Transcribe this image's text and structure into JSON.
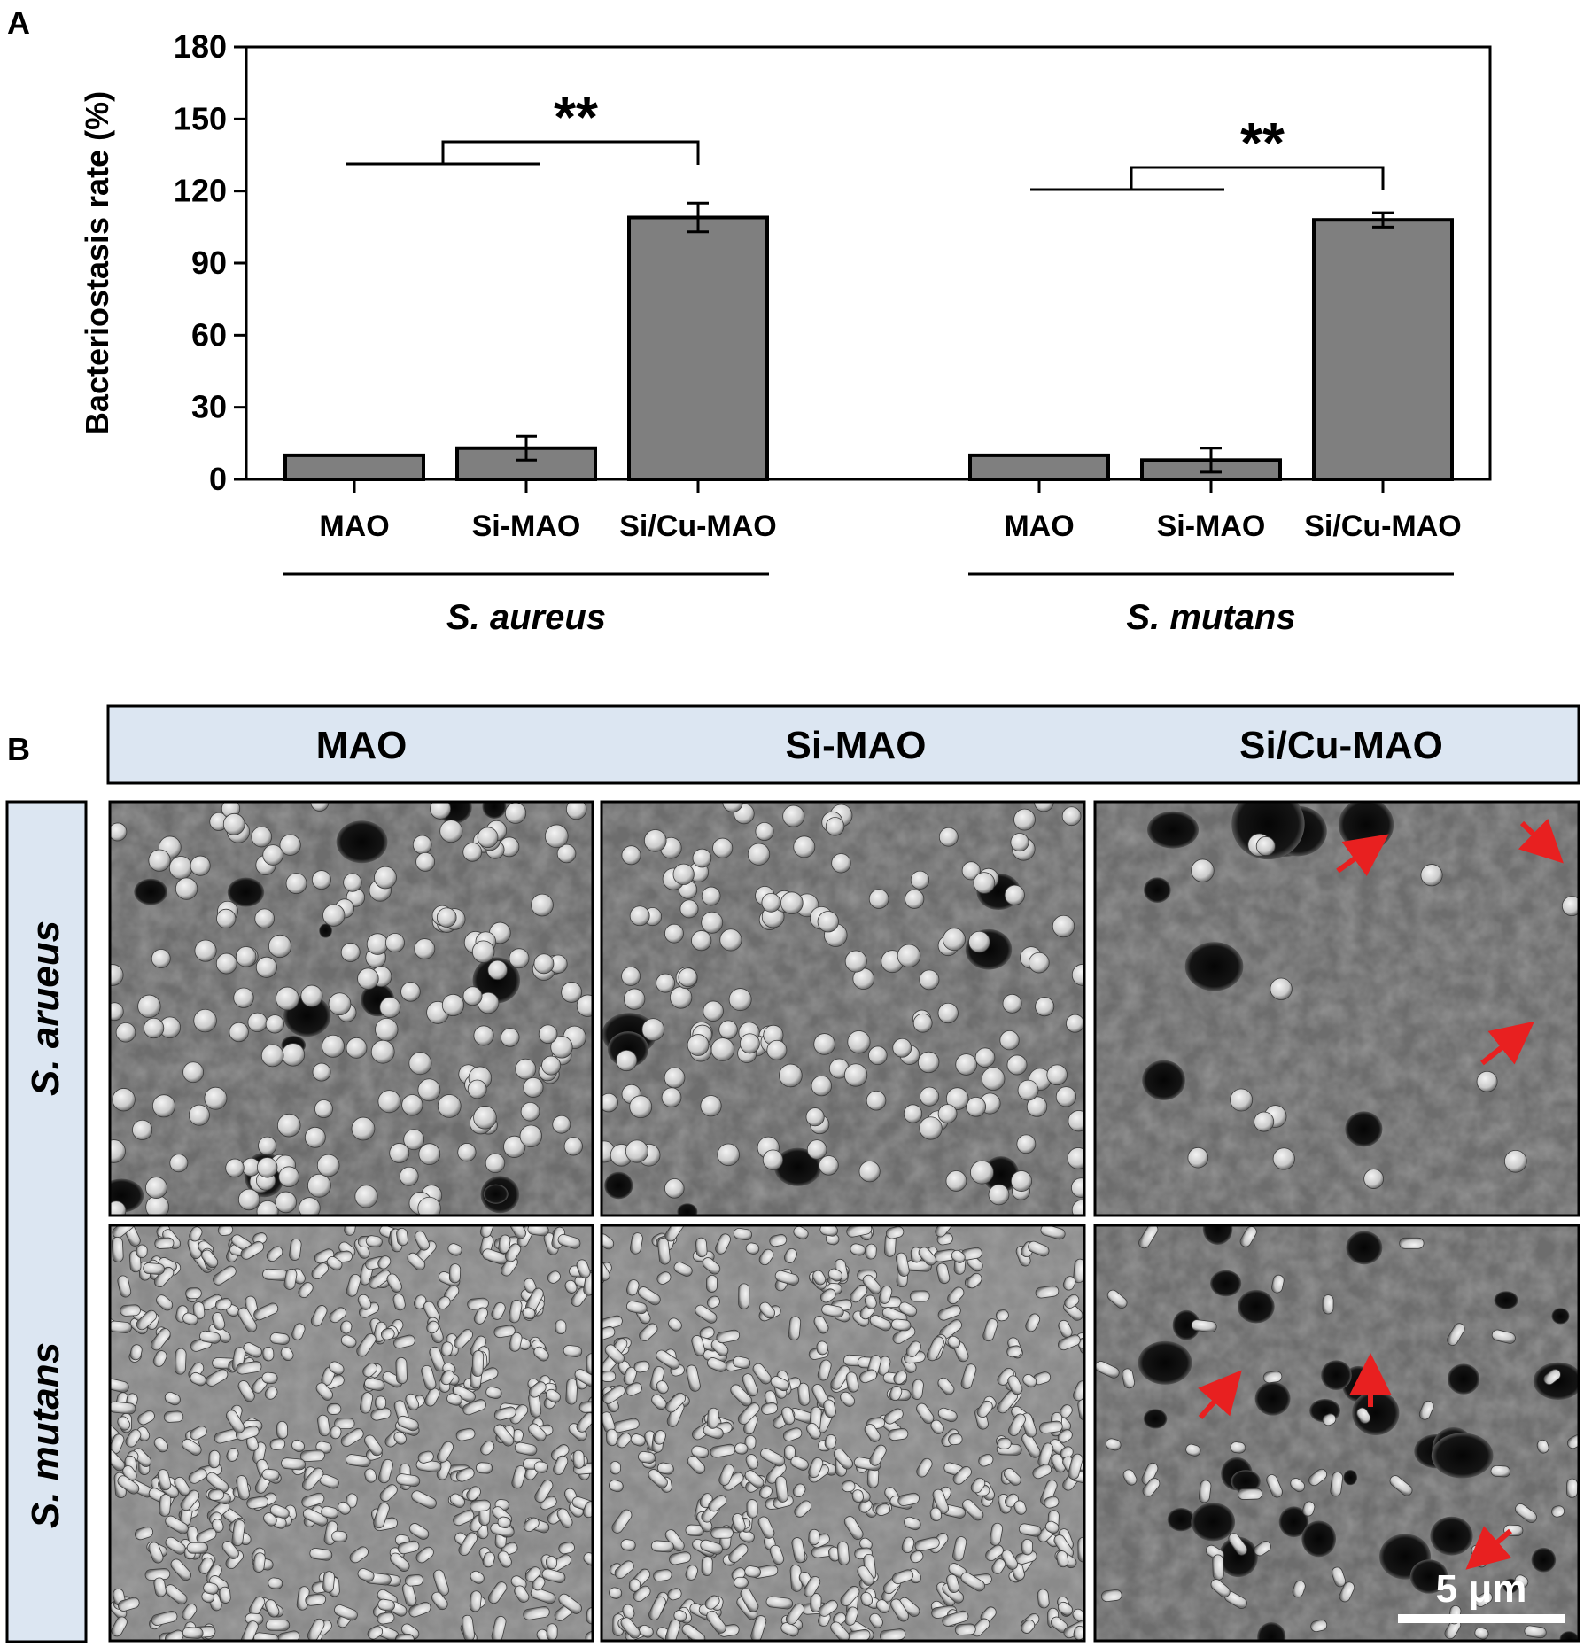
{
  "panel_labels": {
    "a": "A",
    "b": "B"
  },
  "chart_data": {
    "type": "bar",
    "ylabel": "Bacteriostasis rate (%)",
    "xlabel": "",
    "ylim": [
      0,
      180
    ],
    "yticks": [
      "0",
      "30",
      "60",
      "90",
      "120",
      "150",
      "180"
    ],
    "groups": [
      {
        "name": "S. aureus",
        "categories": [
          "MAO",
          "Si-MAO",
          "Si/Cu-MAO"
        ],
        "values": [
          10,
          13,
          109
        ],
        "errors": [
          0,
          5,
          6
        ],
        "significance": "**"
      },
      {
        "name": "S. mutans",
        "categories": [
          "MAO",
          "Si-MAO",
          "Si/Cu-MAO"
        ],
        "values": [
          10,
          8,
          108
        ],
        "errors": [
          0,
          5,
          3
        ],
        "significance": "**"
      }
    ],
    "bar_color": "#7f7f7f",
    "grid": false
  },
  "panel_b": {
    "column_headers": [
      "MAO",
      "Si-MAO",
      "Si/Cu-MAO"
    ],
    "row_labels": [
      "S. arueus",
      "S. mutans"
    ],
    "scale_bar": "5 μm",
    "header_bg": "#dce6f2",
    "arrow_color": "#e82020"
  }
}
